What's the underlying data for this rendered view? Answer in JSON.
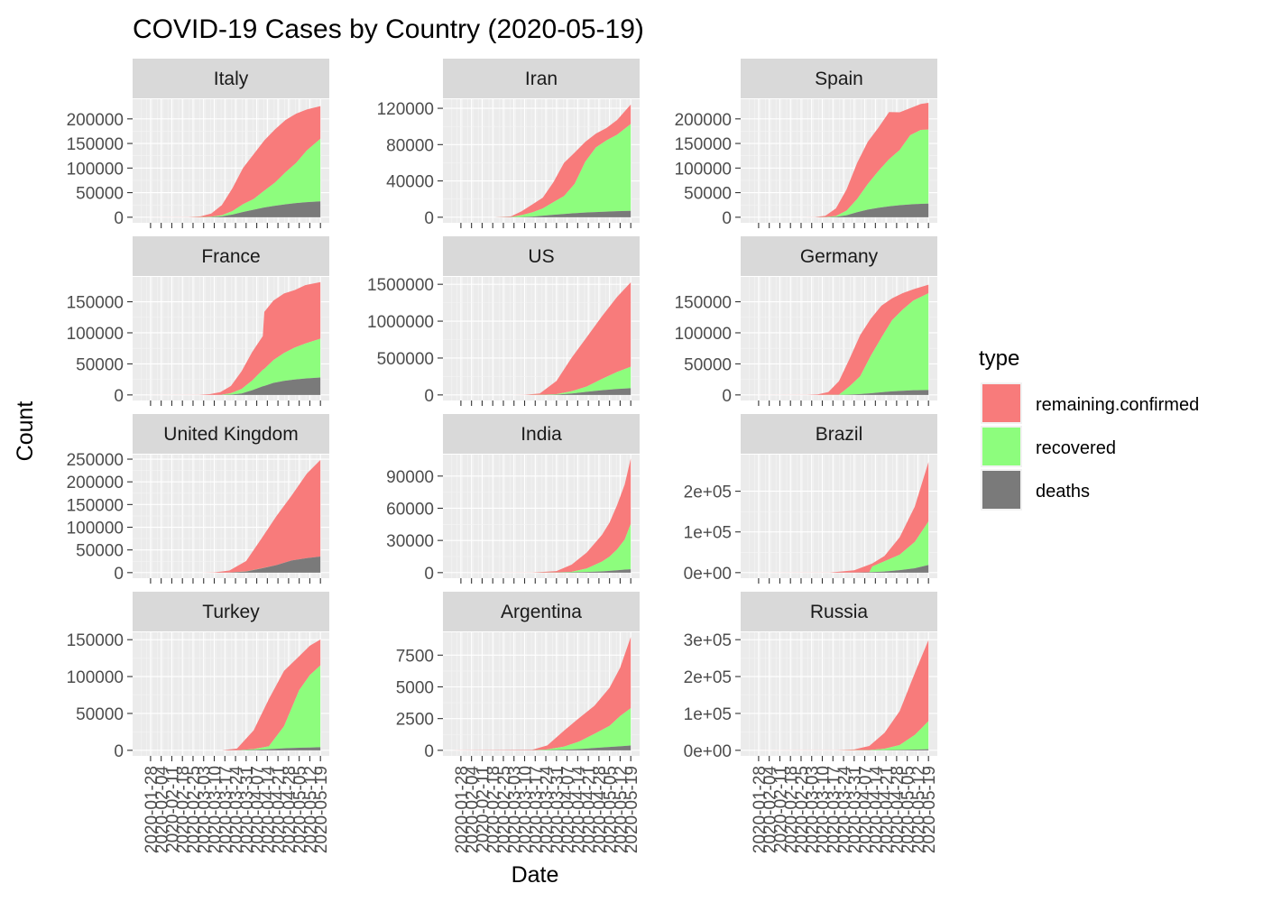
{
  "chart_data": {
    "type": "area",
    "title": "COVID-19 Cases by Country (2020-05-19)",
    "xlabel": "Date",
    "ylabel": "Count",
    "x_ticks": [
      "2020-01-28",
      "2020-02-04",
      "2020-02-11",
      "2020-02-18",
      "2020-02-25",
      "2020-03-03",
      "2020-03-10",
      "2020-03-17",
      "2020-03-24",
      "2020-03-31",
      "2020-04-07",
      "2020-04-14",
      "2020-04-21",
      "2020-04-28",
      "2020-05-05",
      "2020-05-12",
      "2020-05-19"
    ],
    "x_range": [
      "2020-01-22",
      "2020-05-19"
    ],
    "stack_order": [
      "deaths",
      "recovered",
      "remaining.confirmed"
    ],
    "legend": {
      "title": "type",
      "position": "right",
      "entries": [
        {
          "name": "remaining.confirmed",
          "color": "#f87b7b"
        },
        {
          "name": "recovered",
          "color": "#8dfd7d"
        },
        {
          "name": "deaths",
          "color": "#7a7a7a"
        }
      ]
    },
    "panels": [
      {
        "country": "Italy",
        "ylim": [
          0,
          240000
        ],
        "y_ticks": [
          0,
          50000,
          100000,
          150000,
          200000
        ],
        "y_tick_labels": [
          "0",
          "50000",
          "100000",
          "150000",
          "200000"
        ],
        "dates": [
          "2020-01-22",
          "2020-02-22",
          "2020-03-01",
          "2020-03-08",
          "2020-03-15",
          "2020-03-22",
          "2020-03-29",
          "2020-04-05",
          "2020-04-12",
          "2020-04-19",
          "2020-04-26",
          "2020-05-03",
          "2020-05-10",
          "2020-05-19"
        ],
        "deaths": [
          0,
          2,
          34,
          366,
          1809,
          5476,
          10779,
          15362,
          19899,
          23227,
          26384,
          28884,
          30560,
          32169
        ],
        "recovered": [
          0,
          1,
          83,
          622,
          2335,
          7024,
          15729,
          21815,
          34211,
          47055,
          64928,
          81654,
          105186,
          127326
        ],
        "remaining": [
          0,
          76,
          1577,
          6387,
          20603,
          46638,
          73880,
          91246,
          102253,
          108257,
          106527,
          100179,
          83324,
          66553
        ]
      },
      {
        "country": "Iran",
        "ylim": [
          0,
          130000
        ],
        "y_ticks": [
          0,
          40000,
          80000,
          120000
        ],
        "y_tick_labels": [
          "0",
          "40000",
          "80000",
          "120000"
        ],
        "dates": [
          "2020-01-22",
          "2020-02-19",
          "2020-03-01",
          "2020-03-08",
          "2020-03-15",
          "2020-03-22",
          "2020-03-29",
          "2020-04-05",
          "2020-04-12",
          "2020-04-19",
          "2020-04-26",
          "2020-05-03",
          "2020-05-10",
          "2020-05-19"
        ],
        "deaths": [
          0,
          2,
          66,
          194,
          724,
          1685,
          2640,
          3603,
          4474,
          5118,
          5710,
          6203,
          6640,
          7057
        ],
        "recovered": [
          0,
          0,
          123,
          2134,
          4590,
          7913,
          13911,
          19736,
          32309,
          55987,
          71166,
          78422,
          84226,
          95661
        ],
        "remaining": [
          0,
          2,
          789,
          4181,
          8627,
          11989,
          22087,
          36667,
          34483,
          21889,
          15283,
          13719,
          16328,
          21399
        ]
      },
      {
        "country": "Spain",
        "ylim": [
          0,
          240000
        ],
        "y_ticks": [
          0,
          50000,
          100000,
          150000,
          200000
        ],
        "y_tick_labels": [
          "0",
          "50000",
          "100000",
          "150000",
          "200000"
        ],
        "dates": [
          "2020-01-22",
          "2020-02-25",
          "2020-03-05",
          "2020-03-12",
          "2020-03-19",
          "2020-03-26",
          "2020-04-02",
          "2020-04-09",
          "2020-04-16",
          "2020-04-23",
          "2020-04-30",
          "2020-05-07",
          "2020-05-14",
          "2020-05-19"
        ],
        "deaths": [
          0,
          0,
          3,
          84,
          831,
          4089,
          10348,
          15447,
          19130,
          22157,
          24543,
          26070,
          27321,
          27778
        ],
        "recovered": [
          0,
          2,
          2,
          193,
          1588,
          9357,
          26743,
          52165,
          74797,
          95708,
          112050,
          140823,
          150376,
          150376
        ],
        "remaining": [
          0,
          4,
          255,
          2672,
          15525,
          43005,
          73619,
          85913,
          88183,
          95910,
          76781,
          54989,
          52780,
          54554
        ]
      },
      {
        "country": "France",
        "ylim": [
          0,
          190000
        ],
        "y_ticks": [
          0,
          50000,
          100000,
          150000
        ],
        "y_tick_labels": [
          "0",
          "50000",
          "100000",
          "150000"
        ],
        "dates": [
          "2020-01-22",
          "2020-02-29",
          "2020-03-07",
          "2020-03-14",
          "2020-03-21",
          "2020-03-28",
          "2020-04-04",
          "2020-04-11",
          "2020-04-12",
          "2020-04-18",
          "2020-04-25",
          "2020-05-02",
          "2020-05-09",
          "2020-05-19"
        ],
        "deaths": [
          0,
          2,
          16,
          91,
          562,
          2317,
          7574,
          13851,
          14412,
          19345,
          22648,
          24763,
          26380,
          28025
        ],
        "recovered": [
          0,
          12,
          12,
          12,
          2200,
          7226,
          15572,
          26663,
          27469,
          36704,
          44903,
          51371,
          56327,
          62563
        ],
        "remaining": [
          0,
          86,
          1098,
          4422,
          11715,
          28453,
          46049,
          54256,
          91847,
          95866,
          95830,
          92656,
          94032,
          91000
        ]
      },
      {
        "country": "US",
        "ylim": [
          0,
          1600000
        ],
        "y_ticks": [
          0,
          500000,
          1000000,
          1500000
        ],
        "y_tick_labels": [
          "0",
          "500000",
          "1000000",
          "1500000"
        ],
        "dates": [
          "2020-01-22",
          "2020-03-01",
          "2020-03-10",
          "2020-03-20",
          "2020-03-31",
          "2020-04-10",
          "2020-04-20",
          "2020-04-30",
          "2020-05-10",
          "2020-05-19"
        ],
        "deaths": [
          0,
          1,
          28,
          244,
          4000,
          18700,
          42000,
          63000,
          80000,
          91000
        ],
        "recovered": [
          0,
          7,
          8,
          147,
          7000,
          31000,
          72000,
          154000,
          232000,
          290000
        ],
        "remaining": [
          0,
          67,
          900,
          19000,
          178000,
          454000,
          670000,
          850000,
          1017000,
          1145000
        ]
      },
      {
        "country": "Germany",
        "ylim": [
          0,
          190000
        ],
        "y_ticks": [
          0,
          50000,
          100000,
          150000
        ],
        "y_tick_labels": [
          "0",
          "50000",
          "100000",
          "150000"
        ],
        "dates": [
          "2020-01-22",
          "2020-02-29",
          "2020-03-07",
          "2020-03-14",
          "2020-03-21",
          "2020-03-28",
          "2020-04-04",
          "2020-04-11",
          "2020-04-18",
          "2020-04-25",
          "2020-05-02",
          "2020-05-09",
          "2020-05-19"
        ],
        "deaths": [
          0,
          0,
          0,
          9,
          84,
          433,
          1444,
          2736,
          4352,
          5750,
          6736,
          7510,
          8007
        ],
        "recovered": [
          0,
          16,
          17,
          46,
          262,
          13500,
          28700,
          60300,
          88000,
          114500,
          130600,
          144400,
          155681
        ],
        "remaining": [
          0,
          63,
          783,
          4530,
          21832,
          44513,
          66418,
          59831,
          51400,
          35300,
          26600,
          18200,
          13800
        ]
      },
      {
        "country": "United Kingdom",
        "ylim": [
          0,
          260000
        ],
        "y_ticks": [
          0,
          50000,
          100000,
          150000,
          200000,
          250000
        ],
        "y_tick_labels": [
          "0",
          "50000",
          "100000",
          "150000",
          "200000",
          "250000"
        ],
        "dates": [
          "2020-01-22",
          "2020-03-01",
          "2020-03-10",
          "2020-03-20",
          "2020-03-31",
          "2020-04-10",
          "2020-04-20",
          "2020-04-30",
          "2020-05-10",
          "2020-05-19"
        ],
        "deaths": [
          0,
          0,
          7,
          178,
          2357,
          9000,
          16550,
          26842,
          31930,
          35341
        ],
        "recovered": [
          0,
          8,
          18,
          67,
          179,
          344,
          0,
          0,
          0,
          0
        ],
        "remaining": [
          0,
          28,
          350,
          4400,
          23000,
          65000,
          108000,
          143000,
          186000,
          213000
        ]
      },
      {
        "country": "India",
        "ylim": [
          0,
          110000
        ],
        "y_ticks": [
          0,
          30000,
          60000,
          90000
        ],
        "y_tick_labels": [
          "0",
          "30000",
          "60000",
          "90000"
        ],
        "dates": [
          "2020-01-22",
          "2020-03-15",
          "2020-03-31",
          "2020-04-10",
          "2020-04-20",
          "2020-04-30",
          "2020-05-05",
          "2020-05-10",
          "2020-05-15",
          "2020-05-19"
        ],
        "deaths": [
          0,
          2,
          35,
          242,
          592,
          1154,
          1694,
          2212,
          2752,
          3163
        ],
        "recovered": [
          0,
          13,
          102,
          506,
          3273,
          9064,
          13161,
          19358,
          27969,
          42298
        ],
        "remaining": [
          0,
          92,
          1260,
          6699,
          14930,
          24923,
          31796,
          41472,
          51401,
          60960
        ]
      },
      {
        "country": "Brazil",
        "ylim": [
          0,
          290000
        ],
        "y_ticks": [
          0,
          100000,
          200000
        ],
        "y_tick_labels": [
          "0e+00",
          "1e+05",
          "2e+05"
        ],
        "dates": [
          "2020-01-22",
          "2020-03-15",
          "2020-03-31",
          "2020-04-10",
          "2020-04-12",
          "2020-04-20",
          "2020-04-30",
          "2020-05-10",
          "2020-05-19"
        ],
        "deaths": [
          0,
          0,
          201,
          1124,
          1223,
          2587,
          5901,
          10656,
          18859
        ],
        "recovered": [
          0,
          0,
          0,
          0,
          14026,
          25318,
          38039,
          64957,
          106794
        ],
        "remaining": [
          0,
          200,
          5600,
          18500,
          7300,
          13000,
          43000,
          87000,
          146000
        ]
      },
      {
        "country": "Turkey",
        "ylim": [
          0,
          160000
        ],
        "y_ticks": [
          0,
          50000,
          100000,
          150000
        ],
        "y_tick_labels": [
          "0",
          "50000",
          "100000",
          "150000"
        ],
        "dates": [
          "2020-01-22",
          "2020-03-15",
          "2020-03-25",
          "2020-04-05",
          "2020-04-15",
          "2020-04-25",
          "2020-05-05",
          "2020-05-12",
          "2020-05-19"
        ],
        "deaths": [
          0,
          1,
          59,
          574,
          1518,
          2706,
          3520,
          3841,
          4199
        ],
        "recovered": [
          0,
          0,
          42,
          1042,
          4000,
          30000,
          78000,
          98000,
          111000
        ],
        "remaining": [
          0,
          5,
          2300,
          25500,
          64000,
          75000,
          46000,
          40000,
          35000
        ]
      },
      {
        "country": "Argentina",
        "ylim": [
          0,
          9300
        ],
        "y_ticks": [
          0,
          2500,
          5000,
          7500
        ],
        "y_tick_labels": [
          "0",
          "2500",
          "5000",
          "7500"
        ],
        "dates": [
          "2020-01-22",
          "2020-03-15",
          "2020-03-25",
          "2020-04-05",
          "2020-04-15",
          "2020-04-25",
          "2020-05-05",
          "2020-05-12",
          "2020-05-19"
        ],
        "deaths": [
          0,
          2,
          12,
          49,
          98,
          185,
          264,
          315,
          382
        ],
        "recovered": [
          0,
          1,
          52,
          240,
          596,
          1107,
          1659,
          2385,
          2940
        ],
        "remaining": [
          0,
          42,
          325,
          1266,
          1857,
          2212,
          3001,
          3814,
          5609
        ]
      },
      {
        "country": "Russia",
        "ylim": [
          0,
          320000
        ],
        "y_ticks": [
          0,
          100000,
          200000,
          300000
        ],
        "y_tick_labels": [
          "0e+00",
          "1e+05",
          "2e+05",
          "3e+05"
        ],
        "dates": [
          "2020-01-22",
          "2020-03-20",
          "2020-03-31",
          "2020-04-10",
          "2020-04-20",
          "2020-04-30",
          "2020-05-10",
          "2020-05-19"
        ],
        "deaths": [
          0,
          1,
          17,
          94,
          405,
          1073,
          1915,
          2837
        ],
        "recovered": [
          0,
          22,
          121,
          698,
          3873,
          13220,
          39801,
          76130
        ],
        "remaining": [
          0,
          230,
          2200,
          11000,
          43000,
          92000,
          168000,
          220000
        ]
      }
    ]
  }
}
